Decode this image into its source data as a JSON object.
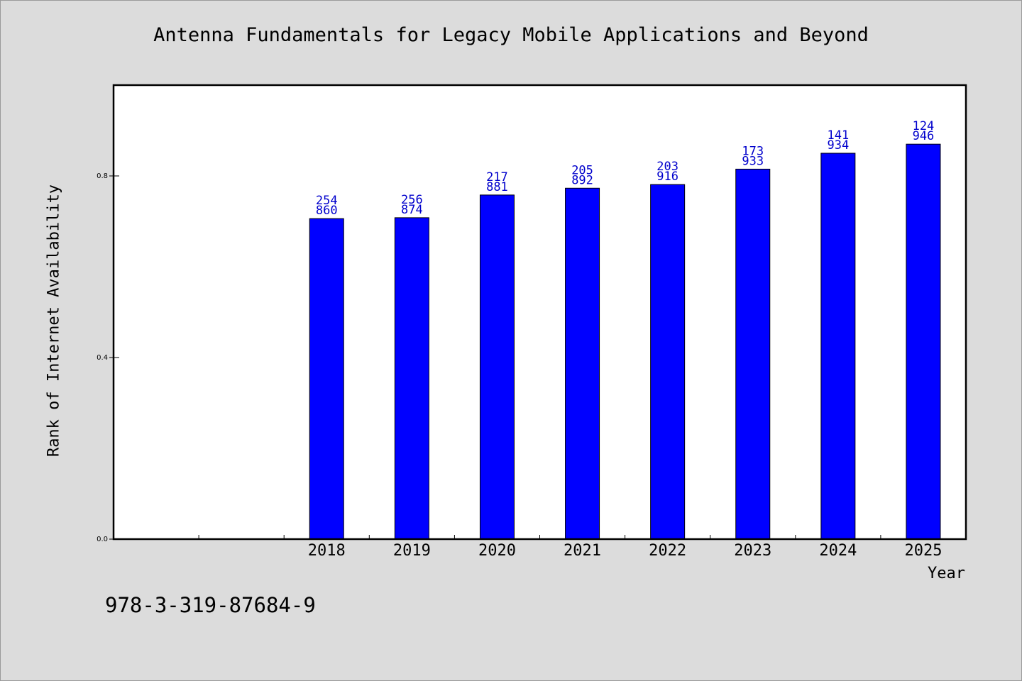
{
  "chart_data": {
    "type": "bar",
    "title": "Antenna Fundamentals for Legacy Mobile Applications and Beyond",
    "xlabel": "Year",
    "ylabel": "Rank of Internet Availability",
    "categories": [
      "",
      "",
      "2018",
      "2019",
      "2020",
      "2021",
      "2022",
      "2023",
      "2024",
      "2025"
    ],
    "values": [
      null,
      null,
      0.706,
      0.708,
      0.758,
      0.773,
      0.781,
      0.815,
      0.85,
      0.87
    ],
    "bar_labels": [
      null,
      null,
      [
        "254",
        "860"
      ],
      [
        "256",
        "874"
      ],
      [
        "217",
        "881"
      ],
      [
        "205",
        "892"
      ],
      [
        "203",
        "916"
      ],
      [
        "173",
        "933"
      ],
      [
        "141",
        "934"
      ],
      [
        "124",
        "946"
      ]
    ],
    "yticks": [
      "0.0",
      "0.4",
      "0.8"
    ],
    "ylim": [
      0,
      1.0
    ],
    "grid": false,
    "bar_color": "#0000ff",
    "label_color": "#0000cc",
    "background": "#ffffff",
    "page_background": "#dcdcdc"
  },
  "footer": {
    "isbn": "978-3-319-87684-9"
  }
}
